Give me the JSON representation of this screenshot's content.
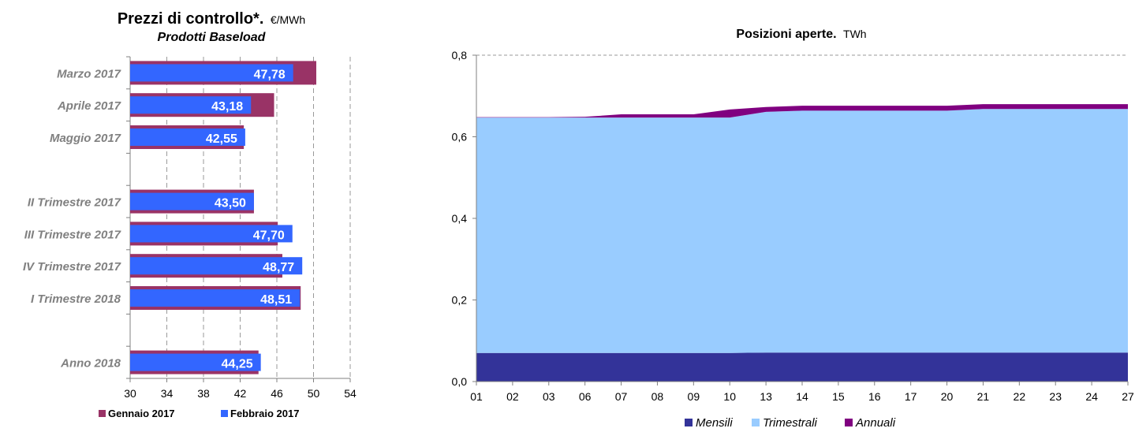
{
  "colors": {
    "gennaio": "#993366",
    "febbraio": "#3366ff",
    "mensili": "#333399",
    "trimestrali": "#99ccff",
    "annuali": "#800080",
    "axis_text": "#808080",
    "grid": "#9a9a9a"
  },
  "chart_data": [
    {
      "type": "bar",
      "orientation": "horizontal",
      "title": "Prezzi di controllo*.",
      "title_unit": "€/MWh",
      "subtitle": "Prodotti Baseload",
      "categories": [
        "Marzo 2017",
        "Aprile 2017",
        "Maggio 2017",
        "",
        "II Trimestre 2017",
        "III Trimestre 2017",
        "IV Trimestre 2017",
        "I Trimestre 2018",
        "",
        "Anno 2018"
      ],
      "series": [
        {
          "name": "Gennaio 2017",
          "color": "#993366",
          "values": [
            50.3,
            45.7,
            42.4,
            null,
            43.5,
            46.1,
            46.6,
            48.6,
            null,
            44.0
          ]
        },
        {
          "name": "Febbraio 2017",
          "color": "#3366ff",
          "values": [
            47.78,
            43.18,
            42.55,
            null,
            43.5,
            47.7,
            48.77,
            48.51,
            null,
            44.25
          ]
        }
      ],
      "value_labels": [
        "47,78",
        "43,18",
        "42,55",
        "",
        "43,50",
        "47,70",
        "48,77",
        "48,51",
        "",
        "44,25"
      ],
      "xlim": [
        30,
        54
      ],
      "xticks": [
        "30",
        "34",
        "38",
        "42",
        "46",
        "50",
        "54"
      ],
      "grid": "vertical dashed",
      "legend_position": "bottom"
    },
    {
      "type": "area",
      "stacked": true,
      "title": "Posizioni aperte",
      "title_unit": "TWh",
      "x": [
        "01",
        "02",
        "03",
        "06",
        "07",
        "08",
        "09",
        "10",
        "13",
        "14",
        "15",
        "16",
        "17",
        "20",
        "21",
        "22",
        "23",
        "24",
        "27"
      ],
      "series": [
        {
          "name": "Mensili",
          "color": "#333399",
          "values": [
            0.07,
            0.07,
            0.07,
            0.07,
            0.07,
            0.07,
            0.07,
            0.07,
            0.071,
            0.071,
            0.071,
            0.071,
            0.071,
            0.071,
            0.071,
            0.071,
            0.071,
            0.071,
            0.071
          ]
        },
        {
          "name": "Trimestrali",
          "color": "#99ccff",
          "values": [
            0.577,
            0.577,
            0.577,
            0.577,
            0.577,
            0.577,
            0.577,
            0.577,
            0.59,
            0.593,
            0.593,
            0.593,
            0.593,
            0.593,
            0.597,
            0.597,
            0.597,
            0.597,
            0.597
          ]
        },
        {
          "name": "Annuali",
          "color": "#800080",
          "values": [
            0.001,
            0.001,
            0.001,
            0.002,
            0.008,
            0.008,
            0.008,
            0.02,
            0.012,
            0.012,
            0.012,
            0.012,
            0.012,
            0.012,
            0.012,
            0.012,
            0.012,
            0.012,
            0.012
          ]
        }
      ],
      "ylim": [
        0,
        0.8
      ],
      "yticks": [
        "0,0",
        "0,2",
        "0,4",
        "0,6",
        "0,8"
      ],
      "grid": "horizontal dashed at top",
      "legend_position": "bottom"
    }
  ]
}
